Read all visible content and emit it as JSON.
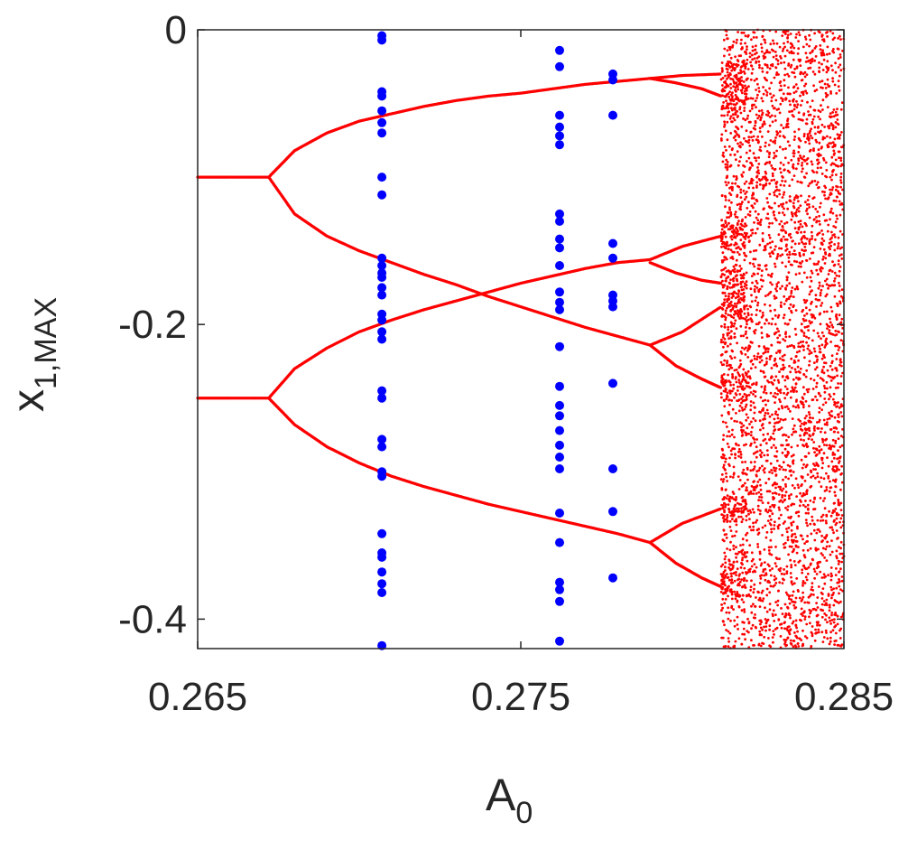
{
  "chart_data": {
    "type": "scatter",
    "title": "",
    "xlabel": {
      "base": "A",
      "sub": "0"
    },
    "ylabel": {
      "base": "x",
      "sub": "1,MAX"
    },
    "xlim": [
      0.265,
      0.285
    ],
    "ylim": [
      -0.42,
      0
    ],
    "xticks": [
      {
        "value": 0.265,
        "label": "0.265"
      },
      {
        "value": 0.275,
        "label": "0.275"
      },
      {
        "value": 0.285,
        "label": "0.285"
      }
    ],
    "yticks": [
      {
        "value": 0,
        "label": "0"
      },
      {
        "value": -0.2,
        "label": "-0.2"
      },
      {
        "value": -0.4,
        "label": "-0.4"
      }
    ],
    "grid": false,
    "legend": "none",
    "series": [
      {
        "marker": "small-dot",
        "color": "#ff0000",
        "branches": [
          {
            "x": [
              0.265,
              0.266,
              0.2672
            ],
            "y": [
              -0.1,
              -0.1,
              -0.1
            ]
          },
          {
            "x": [
              0.265,
              0.266,
              0.2672
            ],
            "y": [
              -0.25,
              -0.25,
              -0.25
            ]
          },
          {
            "x": [
              0.2672,
              0.268,
              0.269,
              0.27,
              0.271,
              0.272,
              0.273,
              0.274,
              0.275,
              0.276,
              0.277,
              0.278,
              0.279,
              0.28,
              0.2812
            ],
            "y": [
              -0.1,
              -0.082,
              -0.07,
              -0.062,
              -0.057,
              -0.052,
              -0.048,
              -0.045,
              -0.043,
              -0.04,
              -0.037,
              -0.035,
              -0.033,
              -0.031,
              -0.03
            ]
          },
          {
            "x": [
              0.2672,
              0.268,
              0.269,
              0.27,
              0.271,
              0.272,
              0.273,
              0.274,
              0.275,
              0.276,
              0.277,
              0.278,
              0.279,
              0.28,
              0.2812
            ],
            "y": [
              -0.1,
              -0.125,
              -0.14,
              -0.15,
              -0.158,
              -0.166,
              -0.173,
              -0.181,
              -0.188,
              -0.195,
              -0.202,
              -0.208,
              -0.214,
              -0.205,
              -0.188
            ]
          },
          {
            "x": [
              0.2672,
              0.268,
              0.269,
              0.27,
              0.271,
              0.272,
              0.273,
              0.274,
              0.275,
              0.276,
              0.277,
              0.278,
              0.279,
              0.28,
              0.2812
            ],
            "y": [
              -0.25,
              -0.23,
              -0.216,
              -0.205,
              -0.197,
              -0.19,
              -0.184,
              -0.178,
              -0.172,
              -0.167,
              -0.162,
              -0.158,
              -0.156,
              -0.147,
              -0.14
            ]
          },
          {
            "x": [
              0.2672,
              0.268,
              0.269,
              0.27,
              0.271,
              0.272,
              0.273,
              0.274,
              0.275,
              0.276,
              0.277,
              0.278,
              0.279,
              0.28,
              0.2812
            ],
            "y": [
              -0.25,
              -0.268,
              -0.283,
              -0.294,
              -0.303,
              -0.31,
              -0.316,
              -0.322,
              -0.327,
              -0.332,
              -0.337,
              -0.342,
              -0.348,
              -0.335,
              -0.325
            ]
          },
          {
            "x": [
              0.279,
              0.2798,
              0.2806,
              0.2812
            ],
            "y": [
              -0.033,
              -0.036,
              -0.04,
              -0.045
            ]
          },
          {
            "x": [
              0.279,
              0.2798,
              0.2806,
              0.2812
            ],
            "y": [
              -0.158,
              -0.165,
              -0.17,
              -0.172
            ]
          },
          {
            "x": [
              0.279,
              0.2798,
              0.2806,
              0.2812
            ],
            "y": [
              -0.214,
              -0.228,
              -0.237,
              -0.243
            ]
          },
          {
            "x": [
              0.279,
              0.2798,
              0.2806,
              0.2812
            ],
            "y": [
              -0.348,
              -0.362,
              -0.372,
              -0.378
            ]
          }
        ],
        "chaotic_region": {
          "x_range": [
            0.2812,
            0.285
          ],
          "y_range": [
            -0.42,
            0
          ],
          "dense_bands": [
            -0.03,
            -0.045,
            -0.14,
            -0.172,
            -0.188,
            -0.243,
            -0.325,
            -0.378
          ]
        }
      },
      {
        "marker": "large-dot",
        "color": "#0000ff",
        "points": [
          {
            "x": 0.2707,
            "y": [
              -0.004,
              -0.007,
              -0.042,
              -0.045,
              -0.055,
              -0.063,
              -0.07,
              -0.1,
              -0.112,
              -0.155,
              -0.16,
              -0.165,
              -0.168,
              -0.175,
              -0.18,
              -0.193,
              -0.197,
              -0.205,
              -0.21,
              -0.245,
              -0.25,
              -0.278,
              -0.283,
              -0.3,
              -0.303,
              -0.342,
              -0.355,
              -0.358,
              -0.368,
              -0.376,
              -0.382,
              -0.418
            ]
          },
          {
            "x": 0.2762,
            "y": [
              -0.014,
              -0.025,
              -0.058,
              -0.066,
              -0.072,
              -0.078,
              -0.125,
              -0.13,
              -0.142,
              -0.148,
              -0.16,
              -0.178,
              -0.185,
              -0.19,
              -0.215,
              -0.242,
              -0.255,
              -0.262,
              -0.272,
              -0.282,
              -0.29,
              -0.298,
              -0.328,
              -0.348,
              -0.375,
              -0.38,
              -0.388,
              -0.415
            ]
          },
          {
            "x": 0.27785,
            "y": [
              -0.03,
              -0.034,
              -0.058,
              -0.145,
              -0.155,
              -0.18,
              -0.184,
              -0.188,
              -0.24,
              -0.298,
              -0.327,
              -0.372
            ]
          }
        ]
      }
    ]
  }
}
